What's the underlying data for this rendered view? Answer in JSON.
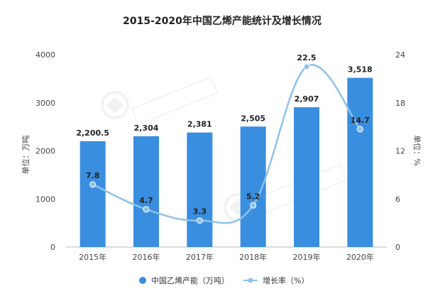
{
  "chart_data": {
    "type": "bar",
    "title": "2015-2020年中国乙烯产能统计及增长情况",
    "categories": [
      "2015年",
      "2016年",
      "2017年",
      "2018年",
      "2019年",
      "2020年"
    ],
    "series": [
      {
        "name": "中国乙烯产能（万吨）",
        "type": "bar",
        "axis": "left",
        "color": "#3a8ee0",
        "values": [
          2200.5,
          2304,
          2381,
          2505,
          2907,
          3518
        ],
        "labels": [
          "2,200.5",
          "2,304",
          "2,381",
          "2,505",
          "2,907",
          "3,518"
        ]
      },
      {
        "name": "增长率（%）",
        "type": "line",
        "axis": "right",
        "color": "#8ec2ea",
        "values": [
          7.8,
          4.7,
          3.3,
          5.2,
          22.5,
          14.7
        ],
        "labels": [
          "7.8",
          "4.7",
          "3.3",
          "5.2",
          "22.5",
          "14.7"
        ]
      }
    ],
    "ylabel_left": "单位：万吨",
    "ylabel_right": "单位：%",
    "ylim_left": [
      0,
      4000
    ],
    "yticks_left": [
      "0",
      "1000",
      "2000",
      "3000",
      "4000"
    ],
    "ylim_right": [
      0,
      24
    ],
    "yticks_right": [
      "0",
      "6",
      "12",
      "18",
      "24"
    ],
    "grid": false,
    "legend_position": "bottom-center"
  },
  "watermark": "前瞻产业研究院"
}
